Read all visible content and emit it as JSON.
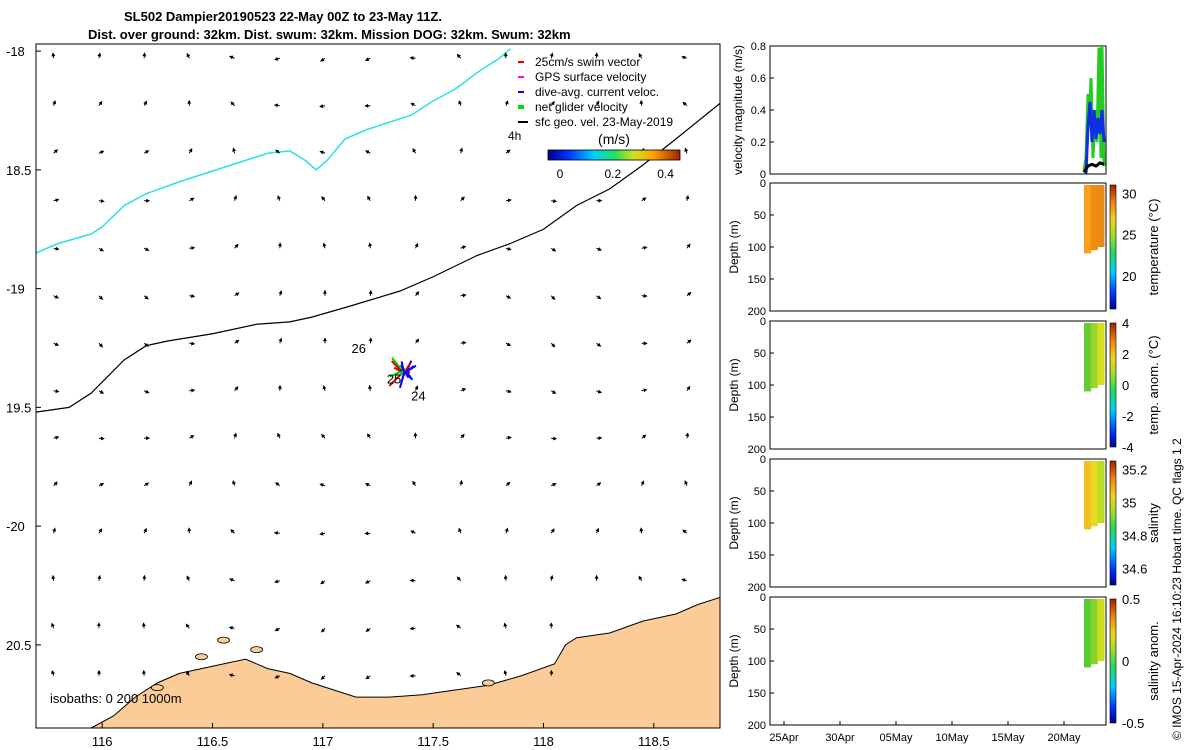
{
  "title": {
    "line1": "SL502 Dampier20190523 22-May 00Z to 23-May 11Z.",
    "line2": "Dist. over ground: 32km. Dist. swum: 32km. Mission DOG: 32km. Swum: 32km"
  },
  "side_note": "© IMOS 15-Apr-2024 16:10:23 Hobart time. QC flags 1  2",
  "chart_data": [
    {
      "type": "map",
      "name": "glider track map",
      "xlim": [
        115.7,
        118.8
      ],
      "ylim": [
        -20.85,
        -17.97
      ],
      "x_ticks": [
        116,
        116.5,
        117,
        117.5,
        118,
        118.5
      ],
      "x_tick_labels": [
        "116",
        "116.5",
        "117",
        "117.5",
        "118",
        "118.5"
      ],
      "y_ticks": [
        -18,
        -18.5,
        -19,
        -19.5,
        -20,
        -20.5
      ],
      "y_tick_labels": [
        "-18",
        "18.5",
        "-19",
        "19.5",
        "-20",
        "20.5"
      ],
      "legend": {
        "items": [
          {
            "label": "25cm/s swim vector",
            "color": "#e00000"
          },
          {
            "label": "GPS surface velocity",
            "color": "#ff00ff"
          },
          {
            "label": "dive-avg. current veloc.",
            "color": "#0000ff"
          },
          {
            "label": "net glider velocity",
            "color": "#00dd00"
          },
          {
            "label": "sfc geo. vel. 23-May-2019",
            "color": "#000000"
          }
        ],
        "note": "4h",
        "placement": "top-right"
      },
      "colorbar": {
        "label": "(m/s)",
        "ticks": [
          "0",
          "0.2",
          "0.4"
        ],
        "range": [
          0,
          0.5
        ]
      },
      "isobath_label": "isobaths: 0   200  1000m",
      "isobath_200": [
        [
          115.7,
          -18.85
        ],
        [
          115.8,
          -18.81
        ],
        [
          115.95,
          -18.77
        ],
        [
          116.0,
          -18.74
        ],
        [
          116.1,
          -18.65
        ],
        [
          116.2,
          -18.6
        ],
        [
          116.35,
          -18.55
        ],
        [
          116.55,
          -18.49
        ],
        [
          116.75,
          -18.43
        ],
        [
          116.85,
          -18.42
        ],
        [
          116.92,
          -18.46
        ],
        [
          116.97,
          -18.5
        ],
        [
          117.02,
          -18.46
        ],
        [
          117.1,
          -18.37
        ],
        [
          117.2,
          -18.33
        ],
        [
          117.4,
          -18.27
        ],
        [
          117.5,
          -18.21
        ],
        [
          117.6,
          -18.16
        ],
        [
          117.7,
          -18.09
        ],
        [
          117.8,
          -18.03
        ],
        [
          117.85,
          -17.99
        ]
      ],
      "isobath_1000": [
        [
          115.7,
          -19.52
        ],
        [
          115.85,
          -19.5
        ],
        [
          115.95,
          -19.44
        ],
        [
          116.1,
          -19.3
        ],
        [
          116.2,
          -19.24
        ],
        [
          116.3,
          -19.22
        ],
        [
          116.5,
          -19.19
        ],
        [
          116.7,
          -19.15
        ],
        [
          116.85,
          -19.14
        ],
        [
          116.95,
          -19.12
        ],
        [
          117.1,
          -19.08
        ],
        [
          117.35,
          -19.01
        ],
        [
          117.5,
          -18.95
        ],
        [
          117.7,
          -18.86
        ],
        [
          117.85,
          -18.81
        ],
        [
          118.0,
          -18.75
        ],
        [
          118.15,
          -18.65
        ],
        [
          118.3,
          -18.58
        ],
        [
          118.45,
          -18.48
        ],
        [
          118.6,
          -18.37
        ],
        [
          118.8,
          -18.22
        ]
      ],
      "coast": [
        [
          115.7,
          -20.85
        ],
        [
          115.95,
          -20.85
        ],
        [
          116.05,
          -20.8
        ],
        [
          116.15,
          -20.72
        ],
        [
          116.25,
          -20.66
        ],
        [
          116.35,
          -20.62
        ],
        [
          116.45,
          -20.6
        ],
        [
          116.55,
          -20.58
        ],
        [
          116.65,
          -20.56
        ],
        [
          116.75,
          -20.6
        ],
        [
          116.85,
          -20.62
        ],
        [
          116.95,
          -20.66
        ],
        [
          117.05,
          -20.69
        ],
        [
          117.15,
          -20.72
        ],
        [
          117.3,
          -20.72
        ],
        [
          117.45,
          -20.71
        ],
        [
          117.6,
          -20.69
        ],
        [
          117.75,
          -20.67
        ],
        [
          117.9,
          -20.63
        ],
        [
          118.05,
          -20.58
        ],
        [
          118.1,
          -20.5
        ],
        [
          118.15,
          -20.47
        ],
        [
          118.3,
          -20.45
        ],
        [
          118.45,
          -20.4
        ],
        [
          118.6,
          -20.37
        ],
        [
          118.7,
          -20.33
        ],
        [
          118.8,
          -20.3
        ]
      ],
      "wp_labels": [
        {
          "text": "26",
          "lon": 117.13,
          "lat": -19.27
        },
        {
          "text": "25",
          "lon": 117.29,
          "lat": -19.4
        },
        {
          "text": "24",
          "lon": 117.4,
          "lat": -19.47
        }
      ],
      "glider_lon": 117.37,
      "glider_lat": -19.35
    },
    {
      "type": "line",
      "name": "velocity magnitude",
      "ylabel": "velocity magnitude (m/s)",
      "ylim": [
        0,
        0.8
      ],
      "y_ticks": [
        "0",
        "0.2",
        "0.4",
        "0.6",
        "0.8"
      ],
      "series": [
        {
          "name": "net glider velocity",
          "color": "#22cc22"
        },
        {
          "name": "dive-avg current",
          "color": "#1030e0"
        },
        {
          "name": "sfc geo",
          "color": "#000000"
        }
      ]
    },
    {
      "type": "heatmap",
      "name": "temperature",
      "ylabel": "Depth (m)",
      "clabel": "temperature (°C)",
      "ylim": [
        0,
        200
      ],
      "y_ticks": [
        "0",
        "50",
        "100",
        "150",
        "200"
      ],
      "cticks": [
        "30",
        "25",
        "20"
      ],
      "crange": [
        16,
        31
      ],
      "fill_colors": [
        "#f7a01a",
        "#f08a10",
        "#e88a18"
      ],
      "max_depth": 110
    },
    {
      "type": "heatmap",
      "name": "temp anomaly",
      "ylabel": "Depth (m)",
      "clabel": "temp. anom. (°C)",
      "ylim": [
        0,
        200
      ],
      "y_ticks": [
        "0",
        "50",
        "100",
        "150",
        "200"
      ],
      "cticks": [
        "4",
        "2",
        "0",
        "-2",
        "-4"
      ],
      "crange": [
        -4,
        4
      ],
      "fill_colors": [
        "#66cc33",
        "#9ad42a",
        "#d6e020"
      ],
      "max_depth": 110
    },
    {
      "type": "heatmap",
      "name": "salinity",
      "ylabel": "Depth (m)",
      "clabel": "salinity",
      "ylim": [
        0,
        200
      ],
      "y_ticks": [
        "0",
        "50",
        "100",
        "150",
        "200"
      ],
      "cticks": [
        "35.2",
        "35",
        "34.8",
        "34.6"
      ],
      "crange": [
        34.5,
        35.25
      ],
      "fill_colors": [
        "#f0c020",
        "#e8d820",
        "#b8dd25"
      ],
      "max_depth": 110
    },
    {
      "type": "heatmap",
      "name": "salinity anomaly",
      "ylabel": "Depth (m)",
      "clabel": "salinity anom.",
      "ylim": [
        0,
        200
      ],
      "y_ticks": [
        "0",
        "50",
        "100",
        "150",
        "200"
      ],
      "cticks": [
        "0.5",
        "0",
        "-0.5"
      ],
      "crange": [
        -0.5,
        0.5
      ],
      "fill_colors": [
        "#55cc33",
        "#88d22a",
        "#c8dd20"
      ],
      "max_depth": 110,
      "x_ticks": [
        "25Apr",
        "30Apr",
        "05May",
        "10May",
        "15May",
        "20May"
      ]
    }
  ]
}
